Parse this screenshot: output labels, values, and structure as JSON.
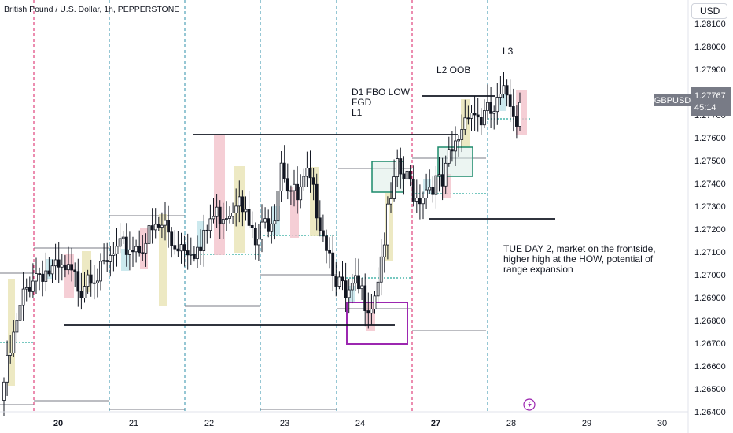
{
  "header": {
    "title": "British Pound / U.S. Dollar, 1h, PEPPERSTONE",
    "currency_button": "USD"
  },
  "price_tag": {
    "symbol": "GBPUSD",
    "price": "1.27767",
    "countdown": "45:14"
  },
  "annotations": {
    "d1_line1": "D1 FBO LOW",
    "d1_line2": "FGD",
    "d1_line3": "L1",
    "l2": "L2 OOB",
    "l3": "L3",
    "note_line1": "TUE DAY 2, market on the frontside,",
    "note_line2": "higher high at the HOW, potential of",
    "note_line3": "range expansion"
  },
  "colors": {
    "bull_candle": "#ffffff",
    "bear_candle": "#000000",
    "box_green": "#1b8a6b",
    "box_purple": "#9c27b0",
    "session_blue": "#2d8fa8",
    "session_red": "#d81b60",
    "level_teal": "#26a69a",
    "tag_bg": "#787b86"
  },
  "chart_data": {
    "type": "candlestick",
    "symbol": "GBPUSD",
    "timeframe": "1h",
    "y_ticks": [
      "1.28100",
      "1.28000",
      "1.27900",
      "1.27800",
      "1.27700",
      "1.27600",
      "1.27500",
      "1.27400",
      "1.27300",
      "1.27200",
      "1.27100",
      "1.27000",
      "1.26900",
      "1.26800",
      "1.26700",
      "1.26600",
      "1.26500",
      "1.26400"
    ],
    "x_ticks": [
      "20",
      "21",
      "22",
      "23",
      "24",
      "27",
      "28",
      "29",
      "30"
    ],
    "ylim": [
      1.2639,
      1.2817
    ],
    "current_price": 1.27767,
    "ohlc_anchors": [
      [
        0,
        1.2653
      ],
      [
        6,
        1.269
      ],
      [
        9,
        1.27
      ],
      [
        12,
        1.2702
      ],
      [
        20,
        1.27
      ],
      [
        24,
        1.2695
      ],
      [
        26,
        1.2703
      ],
      [
        30,
        1.27
      ],
      [
        34,
        1.2708
      ],
      [
        38,
        1.2712
      ],
      [
        42,
        1.2713
      ],
      [
        46,
        1.2718
      ],
      [
        50,
        1.2722
      ],
      [
        52,
        1.2714
      ],
      [
        55,
        1.2714
      ],
      [
        58,
        1.2713
      ],
      [
        61,
        1.271
      ],
      [
        64,
        1.2724
      ],
      [
        68,
        1.2728
      ],
      [
        71,
        1.273
      ],
      [
        73,
        1.274
      ],
      [
        75,
        1.2725
      ],
      [
        78,
        1.2712
      ],
      [
        81,
        1.2722
      ],
      [
        84,
        1.2729
      ],
      [
        86,
        1.2752
      ],
      [
        88,
        1.274
      ],
      [
        91,
        1.2732
      ],
      [
        94,
        1.2742
      ],
      [
        97,
        1.273
      ],
      [
        100,
        1.2715
      ],
      [
        103,
        1.27
      ],
      [
        106,
        1.2688
      ],
      [
        109,
        1.2694
      ],
      [
        112,
        1.269
      ],
      [
        114,
        1.2688
      ],
      [
        116,
        1.27
      ],
      [
        119,
        1.2725
      ],
      [
        122,
        1.2745
      ],
      [
        124,
        1.2742
      ],
      [
        126,
        1.274
      ],
      [
        128,
        1.2734
      ],
      [
        130,
        1.2737
      ],
      [
        133,
        1.2741
      ],
      [
        136,
        1.2738
      ],
      [
        138,
        1.275
      ],
      [
        140,
        1.2756
      ],
      [
        142,
        1.2765
      ],
      [
        144,
        1.2774
      ],
      [
        146,
        1.2771
      ],
      [
        148,
        1.2768
      ],
      [
        150,
        1.277
      ],
      [
        152,
        1.2771
      ],
      [
        154,
        1.2776
      ],
      [
        156,
        1.2779
      ],
      [
        158,
        1.2774
      ],
      [
        159,
        1.2769
      ],
      [
        160,
        1.2776
      ]
    ]
  }
}
